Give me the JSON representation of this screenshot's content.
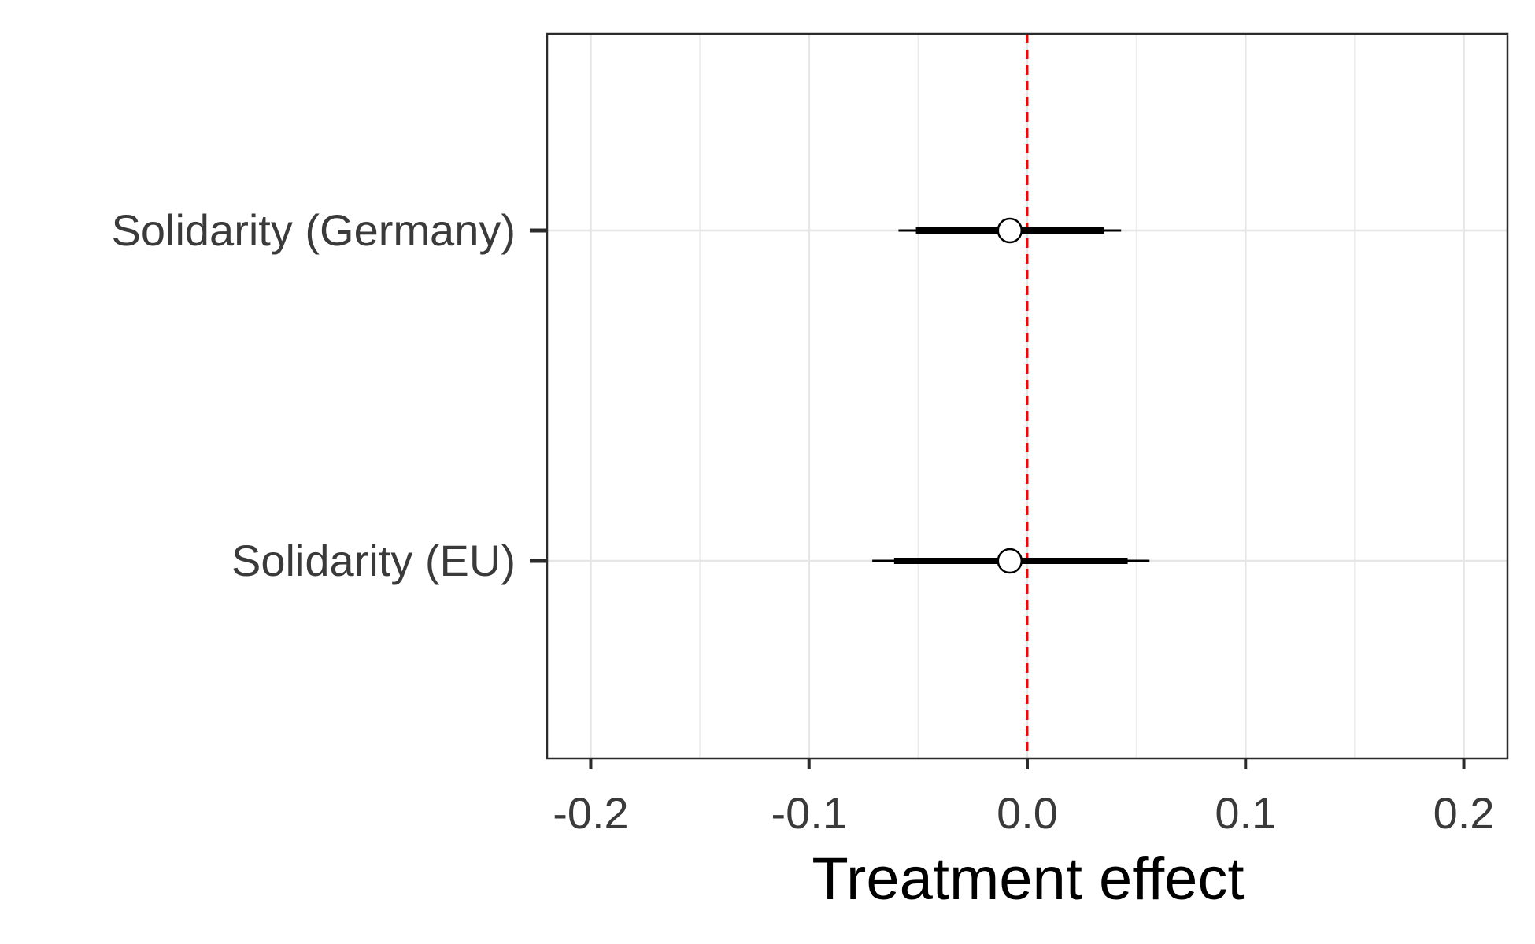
{
  "chart_data": {
    "type": "scatter",
    "subtype": "coefficient-plot",
    "title": "",
    "xlabel": "Treatment effect",
    "ylabel": "",
    "xlim": [
      -0.22,
      0.22
    ],
    "xticks": [
      -0.2,
      -0.1,
      0.0,
      0.1,
      0.2
    ],
    "xtick_labels": [
      "-0.2",
      "-0.1",
      "0.0",
      "0.1",
      "0.2"
    ],
    "x_minor_grid": [
      -0.15,
      -0.05,
      0.05,
      0.15
    ],
    "reference_line": {
      "x": 0,
      "color": "#ff0000",
      "style": "dashed"
    },
    "grid": true,
    "legend": "none",
    "categories": [
      "Solidarity (Germany)",
      "Solidarity (EU)"
    ],
    "estimates": [
      {
        "label": "Solidarity (Germany)",
        "estimate": -0.008,
        "inner_low": -0.051,
        "inner_high": 0.035,
        "outer_low": -0.059,
        "outer_high": 0.043
      },
      {
        "label": "Solidarity (EU)",
        "estimate": -0.008,
        "inner_low": -0.061,
        "inner_high": 0.046,
        "outer_low": -0.071,
        "outer_high": 0.056
      }
    ],
    "colors": {
      "point_fill": "#ffffff",
      "point_stroke": "#000000",
      "interval": "#000000",
      "grid": "#e6e6e6",
      "panel_border": "#2b2b2b"
    }
  }
}
